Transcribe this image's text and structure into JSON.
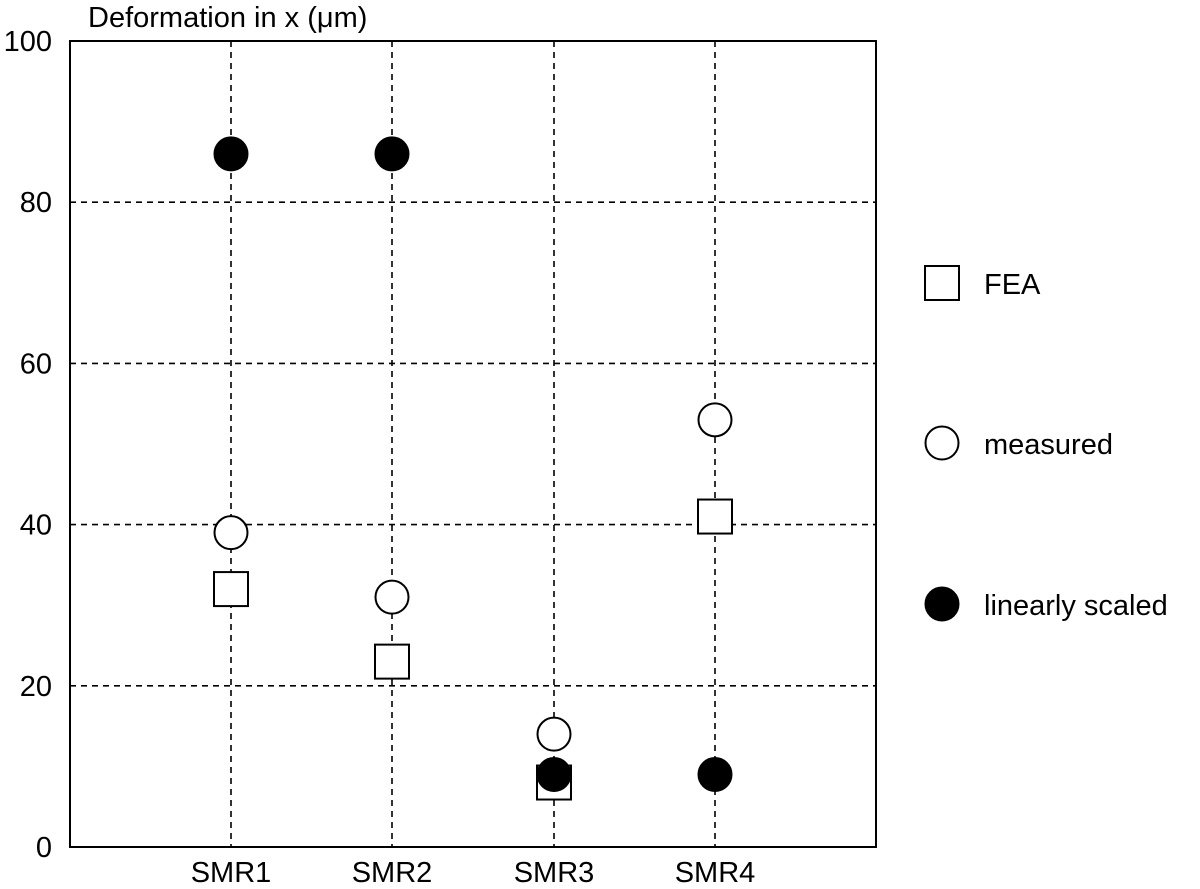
{
  "chart_data": {
    "type": "scatter",
    "title": "",
    "ylabel": "Deformation in x (μm)",
    "xlabel": "",
    "categories": [
      "SMR1",
      "SMR2",
      "SMR3",
      "SMR4"
    ],
    "ylim": [
      0,
      100
    ],
    "yticks": [
      0,
      20,
      40,
      60,
      80,
      100
    ],
    "grid": true,
    "legend_position": "right",
    "series": [
      {
        "name": "FEA",
        "marker": "open-square",
        "values": [
          32,
          23,
          8,
          41
        ]
      },
      {
        "name": "measured",
        "marker": "open-circle",
        "values": [
          39,
          31,
          14,
          53
        ]
      },
      {
        "name": "linearly scaled",
        "marker": "filled-circle",
        "values": [
          86,
          86,
          9,
          9
        ]
      }
    ],
    "colors": {
      "marker": "#000000",
      "grid": "#000000",
      "background": "#ffffff"
    }
  }
}
